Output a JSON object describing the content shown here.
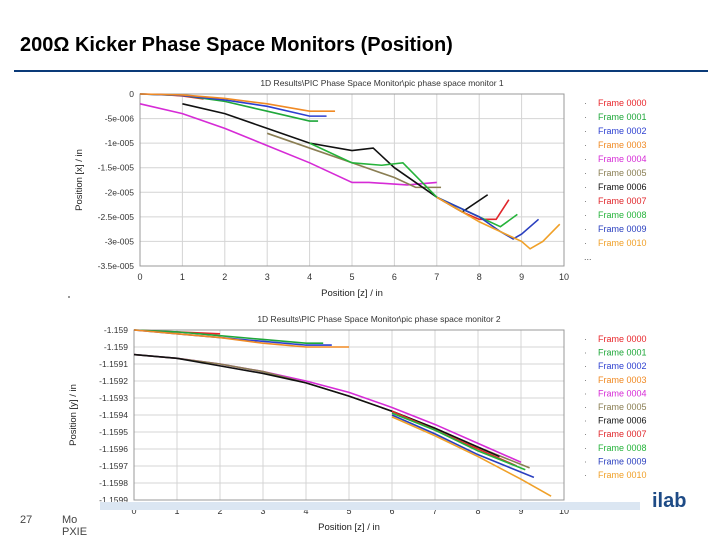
{
  "slide": {
    "title": "200Ω  Kicker Phase Space Monitors (Position)",
    "page_number": "27",
    "footer_line1": "Mo",
    "footer_line2": "PXIE",
    "logo_text": "ilab"
  },
  "colors": {
    "title_rule": "#0a3a78",
    "frames": [
      "#e8262b",
      "#1fa73a",
      "#2c3fd0",
      "#f08a24",
      "#d62bd6",
      "#8a7e53",
      "#111111",
      "#e0262b",
      "#25b33a",
      "#2a3fbf",
      "#f0a028"
    ]
  },
  "chart_data": [
    {
      "type": "line",
      "title": "1D Results\\PIC Phase Space Monitor\\pic phase space monitor 1",
      "xlabel": "Position [z]  / in",
      "ylabel": "Position [x]  / in",
      "xlim": [
        0,
        10
      ],
      "ylim": [
        -3.5e-05,
        0
      ],
      "xticks": [
        "0",
        "1",
        "2",
        "3",
        "4",
        "5",
        "6",
        "7",
        "8",
        "9",
        "10"
      ],
      "yticks": [
        "0",
        "-5e-006",
        "-1e-005",
        "-1.5e-005",
        "-2e-005",
        "-2.5e-005",
        "-3e-005",
        "-3.5e-005"
      ],
      "grid": true,
      "legend_position": "right",
      "legend_more": "...",
      "series": [
        {
          "name": "Frame 0000",
          "color": "#e8262b",
          "x": [
            0,
            0.5,
            1.0,
            1.5
          ],
          "y": [
            0,
            -1e-07,
            -4e-07,
            -1e-06
          ]
        },
        {
          "name": "Frame 0001",
          "color": "#1fa73a",
          "x": [
            0,
            1,
            2,
            3,
            4,
            4.2
          ],
          "y": [
            0,
            -3e-07,
            -1.5e-06,
            -3.5e-06,
            -5.5e-06,
            -5.5e-06
          ]
        },
        {
          "name": "Frame 0002",
          "color": "#2c3fd0",
          "x": [
            0,
            1,
            2,
            3,
            4,
            4.4
          ],
          "y": [
            0,
            -3e-07,
            -1.2e-06,
            -2.5e-06,
            -4.5e-06,
            -4.5e-06
          ]
        },
        {
          "name": "Frame 0003",
          "color": "#f08a24",
          "x": [
            0,
            1,
            2,
            3,
            4,
            4.6
          ],
          "y": [
            0,
            -2e-07,
            -9e-07,
            -2e-06,
            -3.5e-06,
            -3.5e-06
          ]
        },
        {
          "name": "Frame 0004",
          "color": "#d62bd6",
          "x": [
            0,
            1,
            2,
            3,
            4,
            5,
            5.4,
            6.3,
            7.0
          ],
          "y": [
            -2e-06,
            -4e-06,
            -7e-06,
            -1.05e-05,
            -1.4e-05,
            -1.8e-05,
            -1.8e-05,
            -1.85e-05,
            -1.8e-05
          ]
        },
        {
          "name": "Frame 0005",
          "color": "#8a7e53",
          "x": [
            3,
            4,
            5,
            6,
            6.5,
            7.1
          ],
          "y": [
            -8e-06,
            -1.1e-05,
            -1.4e-05,
            -1.7e-05,
            -1.9e-05,
            -1.9e-05
          ]
        },
        {
          "name": "Frame 0006",
          "color": "#111111",
          "x": [
            1,
            2,
            3,
            4,
            5,
            5.5,
            6,
            7,
            7.6,
            8.2
          ],
          "y": [
            -2e-06,
            -4e-06,
            -7e-06,
            -1e-05,
            -1.15e-05,
            -1.1e-05,
            -1.5e-05,
            -2.1e-05,
            -2.4e-05,
            -2.05e-05
          ]
        },
        {
          "name": "Frame 0007",
          "color": "#e0262b",
          "x": [
            7,
            7.6,
            8.0,
            8.4,
            8.7
          ],
          "y": [
            -2.1e-05,
            -2.4e-05,
            -2.55e-05,
            -2.55e-05,
            -2.15e-05
          ]
        },
        {
          "name": "Frame 0008",
          "color": "#25b33a",
          "x": [
            4,
            5,
            5.7,
            6.2,
            7,
            8,
            8.5,
            8.9
          ],
          "y": [
            -1e-05,
            -1.4e-05,
            -1.45e-05,
            -1.4e-05,
            -2.1e-05,
            -2.5e-05,
            -2.7e-05,
            -2.45e-05
          ]
        },
        {
          "name": "Frame 0009",
          "color": "#2a3fbf",
          "x": [
            7,
            8,
            8.5,
            8.8,
            9.0,
            9.4
          ],
          "y": [
            -2.1e-05,
            -2.5e-05,
            -2.8e-05,
            -2.95e-05,
            -2.85e-05,
            -2.55e-05
          ]
        },
        {
          "name": "Frame 0010",
          "color": "#f0a028",
          "x": [
            7,
            8,
            9,
            9.2,
            9.5,
            9.9
          ],
          "y": [
            -2.1e-05,
            -2.6e-05,
            -3e-05,
            -3.15e-05,
            -3e-05,
            -2.65e-05
          ]
        }
      ]
    },
    {
      "type": "line",
      "title": "1D Results\\PIC Phase Space Monitor\\pic phase space monitor 2",
      "xlabel": "Position [z]  / in",
      "ylabel": "Position [y]  / in",
      "xlim": [
        0,
        10
      ],
      "ylim": [
        -1.1599,
        -1.159
      ],
      "xticks": [
        "0",
        "1",
        "2",
        "3",
        "4",
        "5",
        "6",
        "7",
        "8",
        "9",
        "10"
      ],
      "yticks": [
        "-1.159",
        "-1.159",
        "-1.1591",
        "-1.1592",
        "-1.1593",
        "-1.1594",
        "-1.1595",
        "-1.1596",
        "-1.1597",
        "-1.1598",
        "-1.1599"
      ],
      "grid": true,
      "legend_position": "right",
      "series": [
        {
          "name": "Frame 0000",
          "color": "#e8262b",
          "x": [
            0,
            1,
            2
          ],
          "y": [
            -1.159,
            -1.15901,
            -1.15902
          ]
        },
        {
          "name": "Frame 0001",
          "color": "#1fa73a",
          "x": [
            0,
            1,
            2,
            3,
            4,
            4.4
          ],
          "y": [
            -1.159,
            -1.15901,
            -1.15903,
            -1.15905,
            -1.15907,
            -1.15907
          ]
        },
        {
          "name": "Frame 0002",
          "color": "#2c3fd0",
          "x": [
            0,
            1,
            2,
            3,
            4,
            4.6
          ],
          "y": [
            -1.159,
            -1.15902,
            -1.15904,
            -1.15906,
            -1.15908,
            -1.15908
          ]
        },
        {
          "name": "Frame 0003",
          "color": "#f08a24",
          "x": [
            0,
            1,
            2,
            3,
            4,
            5
          ],
          "y": [
            -1.159,
            -1.15902,
            -1.15904,
            -1.15907,
            -1.15909,
            -1.15909
          ]
        },
        {
          "name": "Frame 0004",
          "color": "#d62bd6",
          "x": [
            0,
            1,
            2,
            3,
            4,
            5,
            6,
            7,
            8,
            9.0
          ],
          "y": [
            -1.15913,
            -1.15915,
            -1.15918,
            -1.15922,
            -1.15927,
            -1.15933,
            -1.15941,
            -1.1595,
            -1.1596,
            -1.1597
          ]
        },
        {
          "name": "Frame 0005",
          "color": "#8a7e53",
          "x": [
            0,
            1,
            2,
            3,
            4,
            5,
            6,
            7,
            8,
            9.2
          ],
          "y": [
            -1.15913,
            -1.15915,
            -1.15918,
            -1.15922,
            -1.15928,
            -1.15935,
            -1.15943,
            -1.15952,
            -1.15962,
            -1.15973
          ]
        },
        {
          "name": "Frame 0006",
          "color": "#111111",
          "x": [
            0,
            1,
            2,
            3,
            4,
            5,
            6,
            7,
            8,
            8.5
          ],
          "y": [
            -1.15913,
            -1.15915,
            -1.15919,
            -1.15923,
            -1.15928,
            -1.15935,
            -1.15943,
            -1.15952,
            -1.15962,
            -1.15967
          ]
        },
        {
          "name": "Frame 0007",
          "color": "#e0262b",
          "x": [
            6,
            7,
            8,
            8.9
          ],
          "y": [
            -1.15943,
            -1.15953,
            -1.15963,
            -1.15972
          ]
        },
        {
          "name": "Frame 0008",
          "color": "#25b33a",
          "x": [
            6,
            7,
            8,
            9.1
          ],
          "y": [
            -1.15944,
            -1.15953,
            -1.15964,
            -1.15974
          ]
        },
        {
          "name": "Frame 0009",
          "color": "#2a3fbf",
          "x": [
            6,
            7,
            8,
            9.3
          ],
          "y": [
            -1.15945,
            -1.15955,
            -1.15966,
            -1.15978
          ]
        },
        {
          "name": "Frame 0010",
          "color": "#f0a028",
          "x": [
            6,
            7,
            8,
            9,
            9.7
          ],
          "y": [
            -1.15946,
            -1.15956,
            -1.15967,
            -1.15979,
            -1.15988
          ]
        }
      ]
    }
  ]
}
